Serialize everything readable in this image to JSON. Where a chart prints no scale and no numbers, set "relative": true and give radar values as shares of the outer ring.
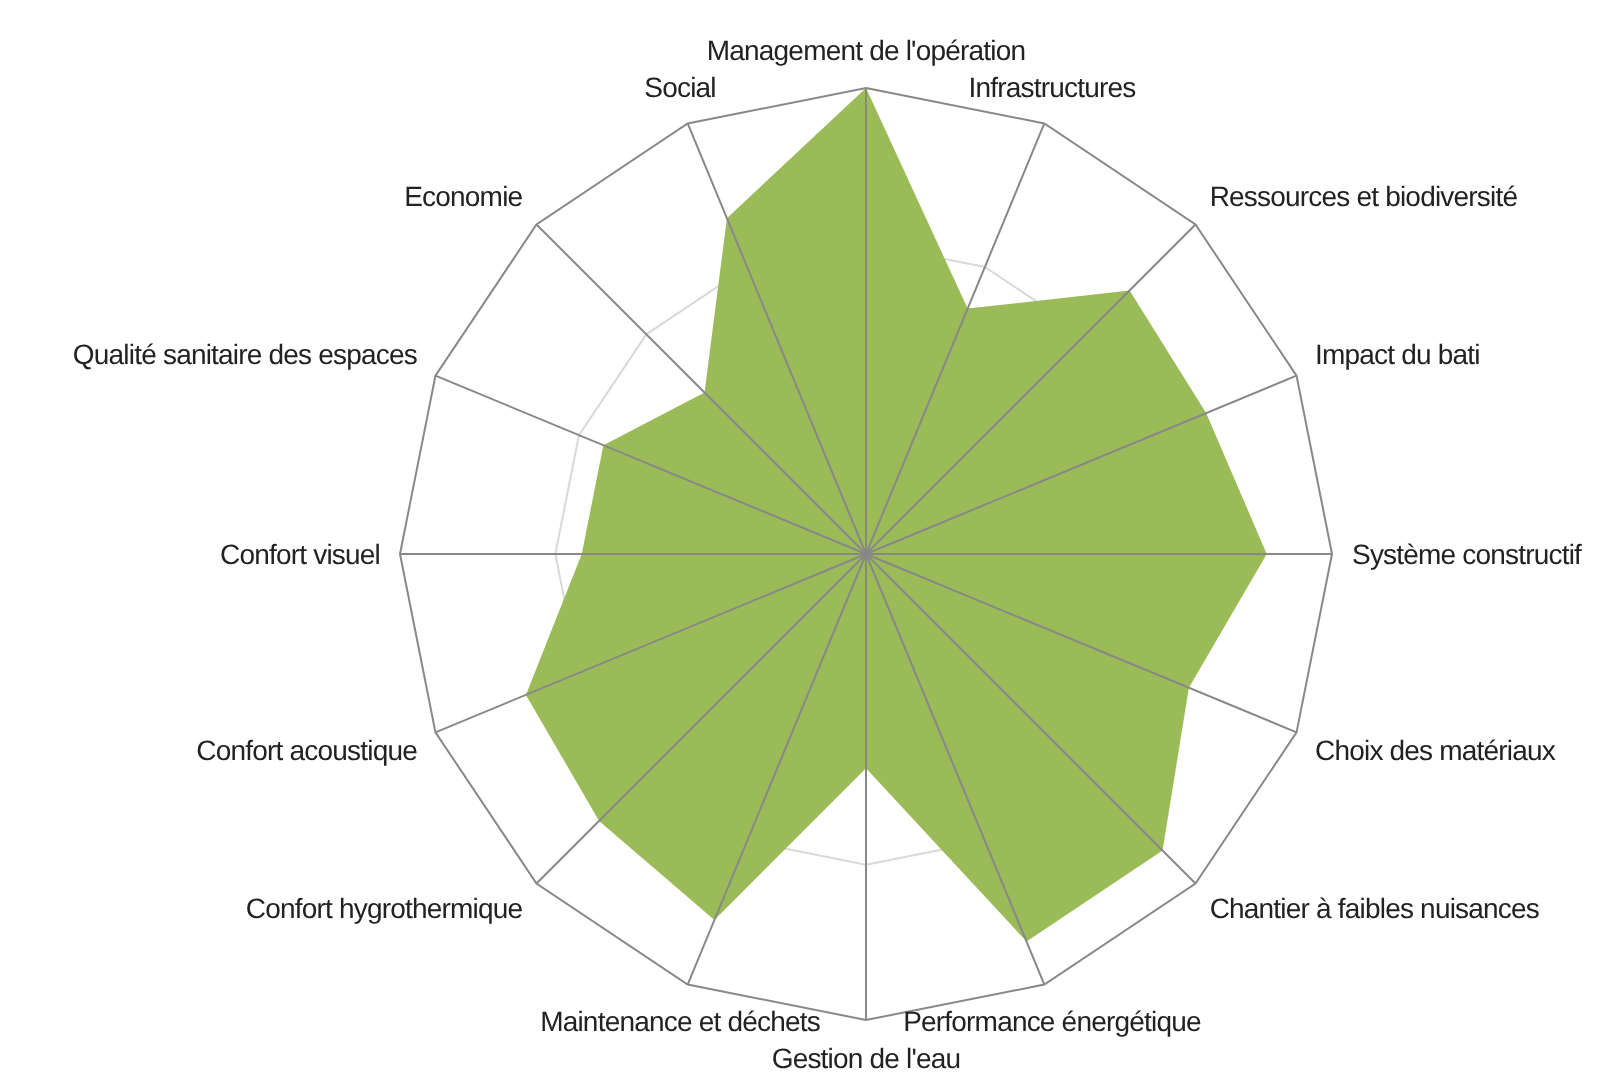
{
  "chart_data": {
    "type": "radar",
    "relative": true,
    "grid": true,
    "categories": [
      "Management de l'opération",
      "Infrastructures",
      "Ressources et biodiversité",
      "Impact du bati",
      "Système constructif",
      "Choix des matériaux",
      "Chantier à faibles nuisances",
      "Performance énergétique",
      "Gestion de l'eau",
      "Maintenance et déchets",
      "Confort hygrothermique",
      "Confort acoustique",
      "Confort visuel",
      "Qualité sanitaire des espaces",
      "Economie",
      "Social"
    ],
    "series": [
      {
        "color": "#9bbb59",
        "values": [
          1.0,
          0.57,
          0.8,
          0.79,
          0.86,
          0.75,
          0.9,
          0.9,
          0.46,
          0.85,
          0.81,
          0.79,
          0.61,
          0.61,
          0.49,
          0.78
        ]
      }
    ]
  }
}
